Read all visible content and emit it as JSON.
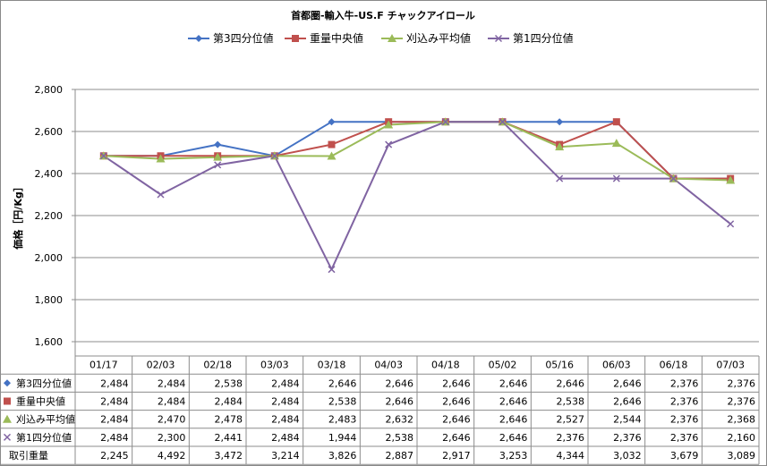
{
  "chart_data": {
    "type": "line",
    "title": "首都圏-輸入牛-US.F チャックアイロール",
    "ylabel": "価格［円/Kg］",
    "xlabel": "",
    "ylim": [
      1600,
      2800
    ],
    "yticks": [
      1600,
      1800,
      2000,
      2200,
      2400,
      2600,
      2800
    ],
    "ytick_labels": [
      "1,600",
      "1,800",
      "2,000",
      "2,200",
      "2,400",
      "2,600",
      "2,800"
    ],
    "grid": true,
    "legend_position": "top",
    "categories": [
      "01/17",
      "02/03",
      "02/18",
      "03/03",
      "03/18",
      "04/03",
      "04/18",
      "05/02",
      "05/16",
      "06/03",
      "06/18",
      "07/03"
    ],
    "series": [
      {
        "name": "第3四分位値",
        "color": "#4472c4",
        "marker": "diamond",
        "values": [
          2484,
          2484,
          2538,
          2484,
          2646,
          2646,
          2646,
          2646,
          2646,
          2646,
          2376,
          2376
        ],
        "labels": [
          "2,484",
          "2,484",
          "2,538",
          "2,484",
          "2,646",
          "2,646",
          "2,646",
          "2,646",
          "2,646",
          "2,646",
          "2,376",
          "2,376"
        ]
      },
      {
        "name": "重量中央値",
        "color": "#c0504d",
        "marker": "square",
        "values": [
          2484,
          2484,
          2484,
          2484,
          2538,
          2646,
          2646,
          2646,
          2538,
          2646,
          2376,
          2376
        ],
        "labels": [
          "2,484",
          "2,484",
          "2,484",
          "2,484",
          "2,538",
          "2,646",
          "2,646",
          "2,646",
          "2,538",
          "2,646",
          "2,376",
          "2,376"
        ]
      },
      {
        "name": "刈込み平均値",
        "color": "#9bbb59",
        "marker": "triangle",
        "values": [
          2484,
          2470,
          2478,
          2484,
          2483,
          2632,
          2646,
          2646,
          2527,
          2544,
          2376,
          2368
        ],
        "labels": [
          "2,484",
          "2,470",
          "2,478",
          "2,484",
          "2,483",
          "2,632",
          "2,646",
          "2,646",
          "2,527",
          "2,544",
          "2,376",
          "2,368"
        ]
      },
      {
        "name": "第1四分位値",
        "color": "#8064a2",
        "marker": "x",
        "values": [
          2484,
          2300,
          2441,
          2484,
          1944,
          2538,
          2646,
          2646,
          2376,
          2376,
          2376,
          2160
        ],
        "labels": [
          "2,484",
          "2,300",
          "2,441",
          "2,484",
          "1,944",
          "2,538",
          "2,646",
          "2,646",
          "2,376",
          "2,376",
          "2,376",
          "2,160"
        ]
      }
    ],
    "extra_rows": [
      {
        "name": "取引重量",
        "values": [
          2245,
          4492,
          3472,
          3214,
          3826,
          2887,
          2917,
          3253,
          4344,
          3032,
          3679,
          3089
        ],
        "labels": [
          "2,245",
          "4,492",
          "3,472",
          "3,214",
          "3,826",
          "2,887",
          "2,917",
          "3,253",
          "4,344",
          "3,032",
          "3,679",
          "3,089"
        ]
      }
    ],
    "colors": {
      "grid": "#8c8c8c",
      "table_border": "#8c8c8c"
    }
  }
}
